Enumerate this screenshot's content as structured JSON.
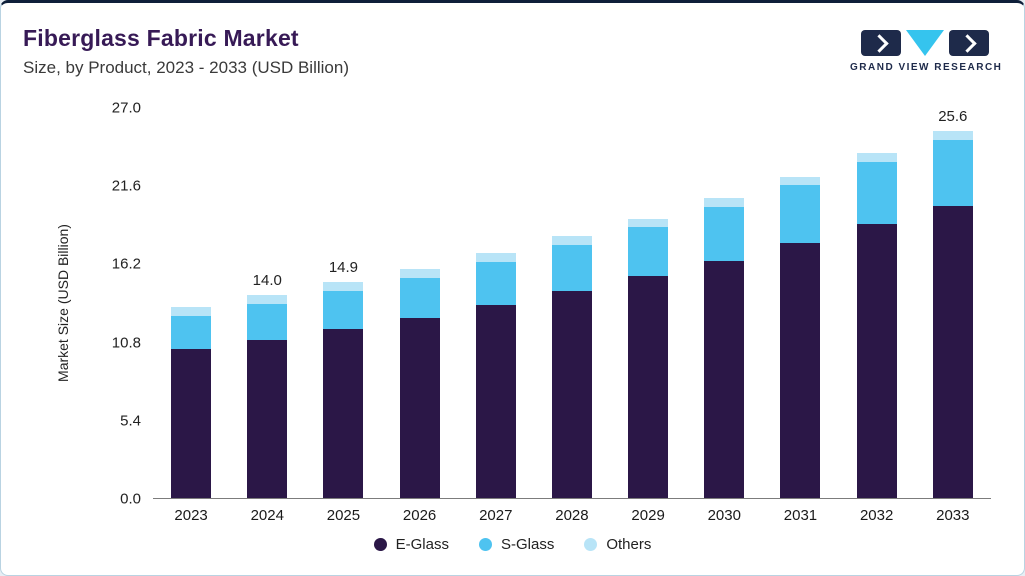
{
  "header": {
    "title": "Fiberglass Fabric Market",
    "subtitle": "Size, by Product, 2023 - 2033 (USD Billion)",
    "logo_text": "GRAND VIEW RESEARCH"
  },
  "colors": {
    "e_glass": "#2b1747",
    "s_glass": "#4ec3f0",
    "others": "#b8e4f7",
    "accent_navy": "#1e2a4a",
    "accent_cyan": "#35c4ee",
    "title_purple": "#371a56"
  },
  "chart_data": {
    "type": "bar",
    "stacked": true,
    "title": "Fiberglass Fabric Market Size, by Product, 2023 - 2033 (USD Billion)",
    "xlabel": "",
    "ylabel": "Market Size (USD Billion)",
    "ylim": [
      0,
      27.0
    ],
    "yticks": [
      0.0,
      5.4,
      10.8,
      16.2,
      21.6,
      27.0
    ],
    "grid": false,
    "legend_position": "bottom",
    "categories": [
      "2023",
      "2024",
      "2025",
      "2026",
      "2027",
      "2028",
      "2029",
      "2030",
      "2031",
      "2032",
      "2033"
    ],
    "series": [
      {
        "name": "E-Glass",
        "color": "#2b1747",
        "values": [
          10.3,
          10.9,
          11.7,
          12.4,
          13.3,
          14.3,
          15.3,
          16.4,
          17.6,
          18.9,
          20.4
        ]
      },
      {
        "name": "S-Glass",
        "color": "#4ec3f0",
        "values": [
          2.3,
          2.5,
          2.6,
          2.8,
          3.0,
          3.2,
          3.4,
          3.7,
          4.0,
          4.3,
          4.6
        ]
      },
      {
        "name": "Others",
        "color": "#b8e4f7",
        "values": [
          0.6,
          0.6,
          0.6,
          0.6,
          0.6,
          0.6,
          0.6,
          0.6,
          0.6,
          0.6,
          0.6
        ]
      }
    ],
    "totals": [
      13.2,
      14.0,
      14.9,
      15.8,
      16.9,
      18.1,
      19.3,
      20.7,
      22.2,
      23.8,
      25.6
    ],
    "bar_labels": [
      "",
      "14.0",
      "14.9",
      "",
      "",
      "",
      "",
      "",
      "",
      "",
      "25.6"
    ]
  }
}
